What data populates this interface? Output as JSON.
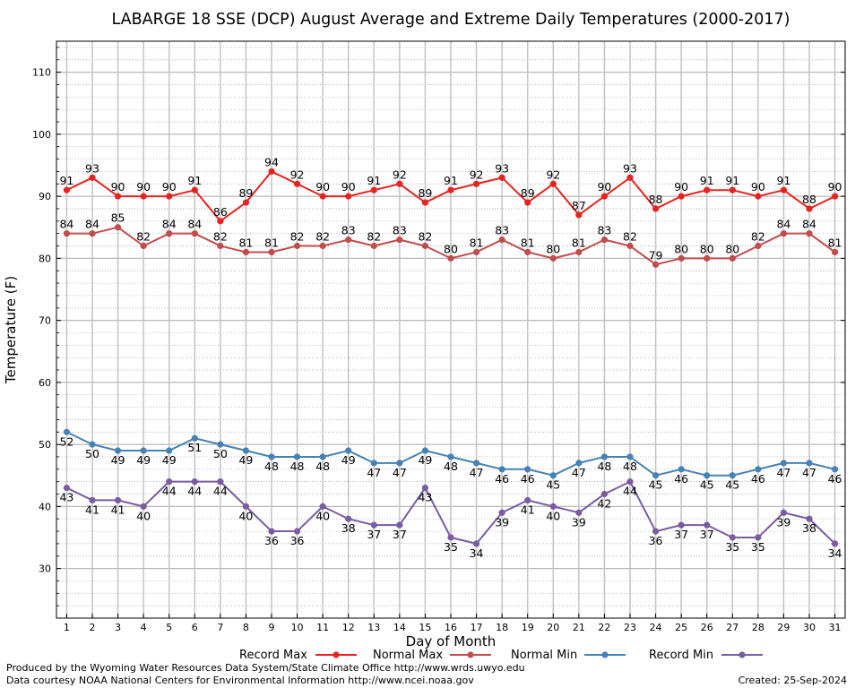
{
  "chart_data": {
    "type": "line",
    "title": "LABARGE 18 SSE (DCP) August Average and Extreme Daily Temperatures (2000-2017)",
    "xlabel": "Day of Month",
    "ylabel": "Temperature (F)",
    "x": [
      1,
      2,
      3,
      4,
      5,
      6,
      7,
      8,
      9,
      10,
      11,
      12,
      13,
      14,
      15,
      16,
      17,
      18,
      19,
      20,
      21,
      22,
      23,
      24,
      25,
      26,
      27,
      28,
      29,
      30,
      31
    ],
    "xlim": [
      0.6,
      31.4
    ],
    "ylim": [
      22,
      115
    ],
    "yticks": [
      30,
      40,
      50,
      60,
      70,
      80,
      90,
      100,
      110
    ],
    "grid": true,
    "legend_position": "bottom",
    "series": [
      {
        "name": "Record Max",
        "color": "#e8231f",
        "values": [
          91,
          93,
          90,
          90,
          90,
          91,
          86,
          89,
          94,
          92,
          90,
          90,
          91,
          92,
          89,
          91,
          92,
          93,
          89,
          92,
          87,
          90,
          93,
          88,
          90,
          91,
          91,
          90,
          91,
          88,
          90
        ]
      },
      {
        "name": "Normal Max",
        "color": "#c14c4c",
        "values": [
          84,
          84,
          85,
          82,
          84,
          84,
          82,
          81,
          81,
          82,
          82,
          83,
          82,
          83,
          82,
          80,
          81,
          83,
          81,
          80,
          81,
          83,
          82,
          79,
          80,
          80,
          80,
          82,
          84,
          84,
          81
        ]
      },
      {
        "name": "Normal Min",
        "color": "#4682b4",
        "values": [
          52,
          50,
          49,
          49,
          49,
          51,
          50,
          49,
          48,
          48,
          48,
          49,
          47,
          47,
          49,
          48,
          47,
          46,
          46,
          45,
          47,
          48,
          48,
          45,
          46,
          45,
          45,
          46,
          47,
          47,
          46
        ]
      },
      {
        "name": "Record Min",
        "color": "#7a5ca0",
        "values": [
          43,
          41,
          41,
          40,
          44,
          44,
          44,
          40,
          36,
          36,
          40,
          38,
          37,
          37,
          43,
          35,
          34,
          39,
          41,
          40,
          39,
          42,
          44,
          36,
          37,
          37,
          35,
          35,
          39,
          38,
          34
        ]
      }
    ]
  },
  "footer": {
    "line1": "Produced by the Wyoming Water Resources Data System/State Climate Office http://www.wrds.uwyo.edu",
    "line2": "Data courtesy NOAA National Centers for Environmental Information http://www.ncei.noaa.gov",
    "created": "Created:  25-Sep-2024"
  }
}
